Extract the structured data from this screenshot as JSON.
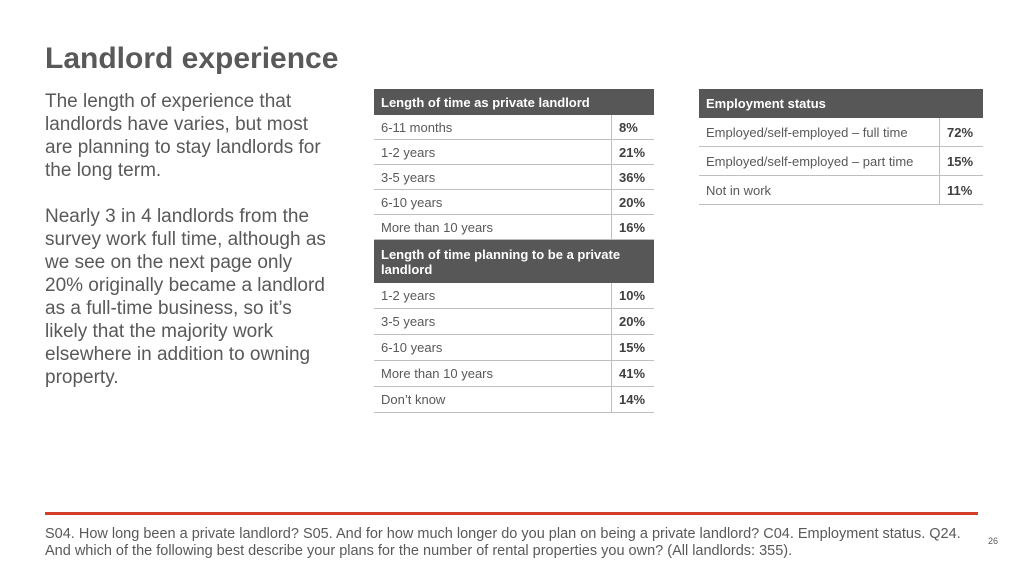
{
  "title": "Landlord experience",
  "body": {
    "paragraph1": "The length of experience that landlords have varies, but most are planning to stay landlords for the long term.",
    "paragraph2": "Nearly 3 in 4 landlords from the survey work full time, although as we see on the next page only 20% originally became a landlord as a full-time business, so it’s likely that the majority work elsewhere in addition to owning property."
  },
  "table_length": {
    "header1": "Length of time as private landlord",
    "rows1": [
      {
        "label": "6-11 months",
        "value": "8%"
      },
      {
        "label": "1-2 years",
        "value": "21%"
      },
      {
        "label": "3-5 years",
        "value": "36%"
      },
      {
        "label": "6-10 years",
        "value": "20%"
      },
      {
        "label": "More than 10 years",
        "value": "16%"
      }
    ],
    "header2": "Length of time planning to be a private landlord",
    "rows2": [
      {
        "label": "1-2 years",
        "value": "10%"
      },
      {
        "label": "3-5 years",
        "value": "20%"
      },
      {
        "label": "6-10 years",
        "value": "15%"
      },
      {
        "label": "More than 10 years",
        "value": "41%"
      },
      {
        "label": "Don’t know",
        "value": "14%"
      }
    ]
  },
  "table_employment": {
    "header": "Employment status",
    "rows": [
      {
        "label": "Employed/self-employed – full time",
        "value": "72%"
      },
      {
        "label": "Employed/self-employed – part time",
        "value": "15%"
      },
      {
        "label": "Not in work",
        "value": "11%"
      }
    ]
  },
  "footnote": "S04. How long been a private landlord? S05. And for how much longer do you plan on being a private landlord? C04. Employment status. Q24. And which of the following best describe your plans for the number of rental properties you own? (All landlords: 355).",
  "page_number": "26",
  "colors": {
    "accent_line": "#d33d2a",
    "table_header": "#575757",
    "text": "#595959"
  }
}
